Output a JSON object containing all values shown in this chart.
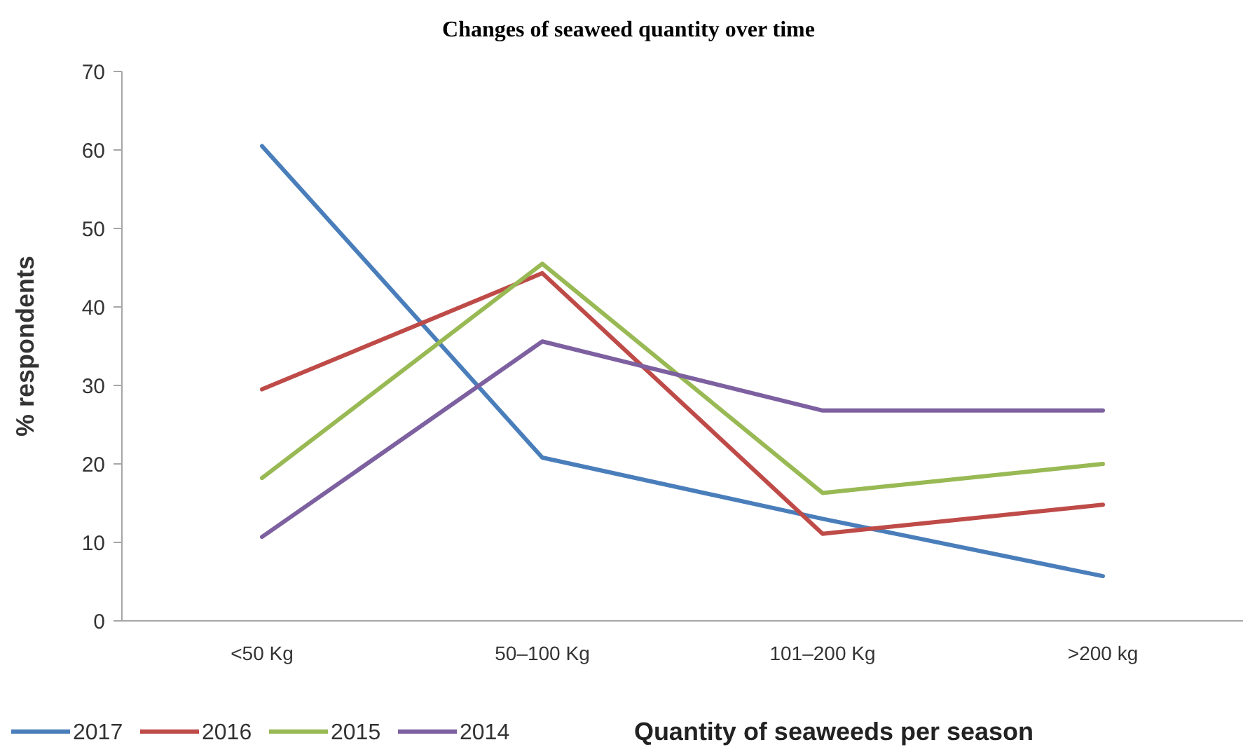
{
  "chart_data": {
    "type": "line",
    "title": "Changes of seaweed quantity over time",
    "xlabel": "Quantity of seaweeds per season",
    "ylabel": "% respondents",
    "categories": [
      "<50 Kg",
      "50–100 Kg",
      "101–200 Kg",
      ">200 kg"
    ],
    "series": [
      {
        "name": "2017",
        "color": "#4a7ebb",
        "values": [
          60.5,
          20.8,
          13,
          5.7
        ]
      },
      {
        "name": "2016",
        "color": "#be4b48",
        "values": [
          29.5,
          44.3,
          11.1,
          14.8
        ]
      },
      {
        "name": "2015",
        "color": "#98b954",
        "values": [
          18.2,
          45.5,
          16.3,
          20
        ]
      },
      {
        "name": "2014",
        "color": "#7d60a0",
        "values": [
          10.7,
          35.6,
          26.8,
          26.8
        ]
      }
    ],
    "ylim": [
      0,
      70
    ],
    "yticks": [
      0,
      10,
      20,
      30,
      40,
      50,
      60,
      70
    ],
    "grid": false,
    "legend": "bottom left",
    "marker": "none",
    "line_style": "solid"
  }
}
